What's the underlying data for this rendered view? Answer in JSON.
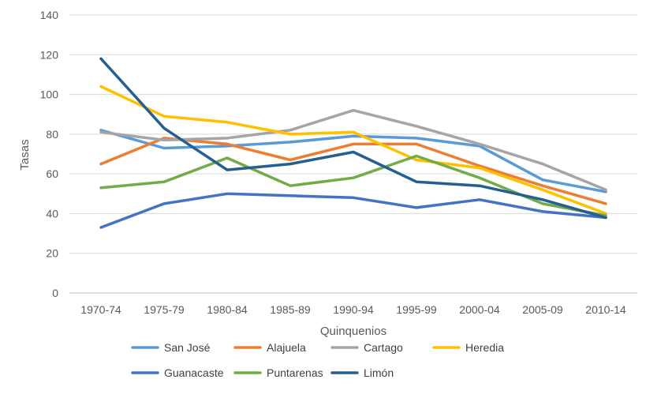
{
  "chart_data": {
    "type": "line",
    "xlabel": "Quinquenios",
    "ylabel": "Tasas",
    "ylim": [
      0,
      140
    ],
    "yticks": [
      0,
      20,
      40,
      60,
      80,
      100,
      120,
      140
    ],
    "grid": "horizontal",
    "legend_position": "bottom",
    "categories": [
      "1970-74",
      "1975-79",
      "1980-84",
      "1985-89",
      "1990-94",
      "1995-99",
      "2000-04",
      "2005-09",
      "2010-14"
    ],
    "series": [
      {
        "name": "San José",
        "color": "#5B9BD5",
        "values": [
          82,
          73,
          74,
          76,
          79,
          78,
          74,
          57,
          51
        ]
      },
      {
        "name": "Alajuela",
        "color": "#ED7D31",
        "values": [
          65,
          78,
          75,
          67,
          75,
          75,
          64,
          54,
          45
        ]
      },
      {
        "name": "Cartago",
        "color": "#A5A5A5",
        "values": [
          81,
          77,
          78,
          82,
          92,
          84,
          75,
          65,
          52
        ]
      },
      {
        "name": "Heredia",
        "color": "#FFC000",
        "values": [
          104,
          89,
          86,
          80,
          81,
          67,
          63,
          52,
          40
        ]
      },
      {
        "name": "Guanacaste",
        "color": "#4472C4",
        "values": [
          33,
          45,
          50,
          49,
          48,
          43,
          47,
          41,
          38
        ]
      },
      {
        "name": "Puntarenas",
        "color": "#70AD47",
        "values": [
          53,
          56,
          68,
          54,
          58,
          69,
          58,
          45,
          39
        ]
      },
      {
        "name": "Limón",
        "color": "#255E91",
        "values": [
          118,
          83,
          62,
          65,
          71,
          56,
          54,
          47,
          38
        ]
      }
    ]
  }
}
